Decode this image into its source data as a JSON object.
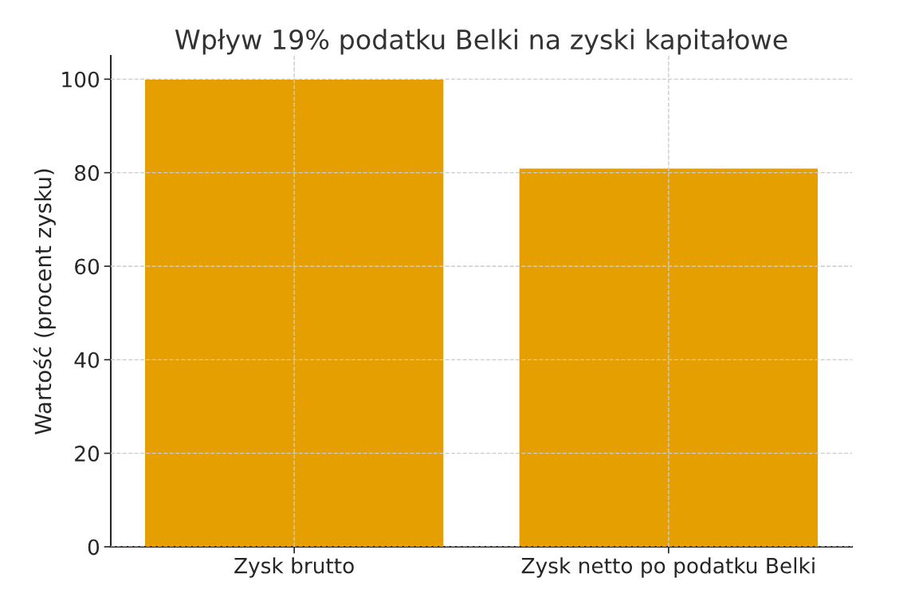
{
  "chart_data": {
    "type": "bar",
    "title": "Wpływ 19% podatku Belki na zyski kapitałowe",
    "ylabel": "Wartość (procent zysku)",
    "categories": [
      "Zysk brutto",
      "Zysk netto po podatku Belki"
    ],
    "values": [
      100,
      81
    ],
    "color": "#e69f00",
    "ylim": [
      0,
      105
    ],
    "yticks": [
      0,
      20,
      40,
      60,
      80,
      100
    ],
    "grid": true
  }
}
